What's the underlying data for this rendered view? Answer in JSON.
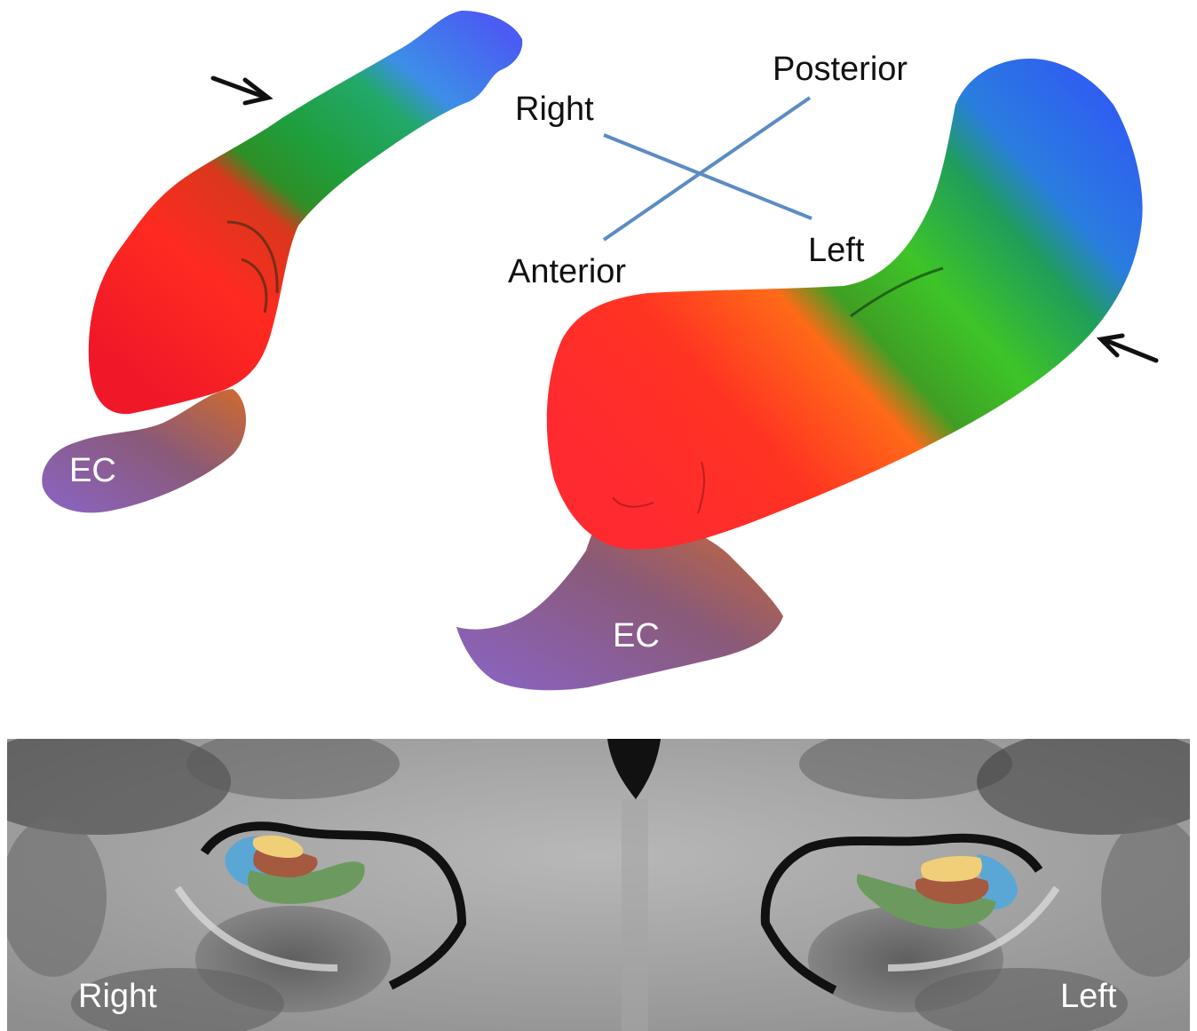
{
  "top_panel": {
    "orientation": {
      "posterior": "Posterior",
      "right": "Right",
      "left": "Left",
      "anterior": "Anterior"
    },
    "left_structure": {
      "ec_label": "EC"
    },
    "right_structure": {
      "ec_label": "EC"
    }
  },
  "bottom_panel": {
    "side_left_label": "Right",
    "side_right_label": "Left"
  },
  "colors": {
    "axis_line": "#5b8cc4",
    "seg_red": "#ff2a1a",
    "seg_green": "#27c43a",
    "seg_blue": "#2f6ff0",
    "ec_purple": "#8a5aa8",
    "ec_brown": "#c9662e",
    "overlay_yellow": "#f0cf78",
    "overlay_brown": "#a55a40",
    "overlay_green": "#6c9a5e",
    "overlay_blue": "#5aa7d6"
  },
  "icons": [
    "arrow-icon"
  ]
}
